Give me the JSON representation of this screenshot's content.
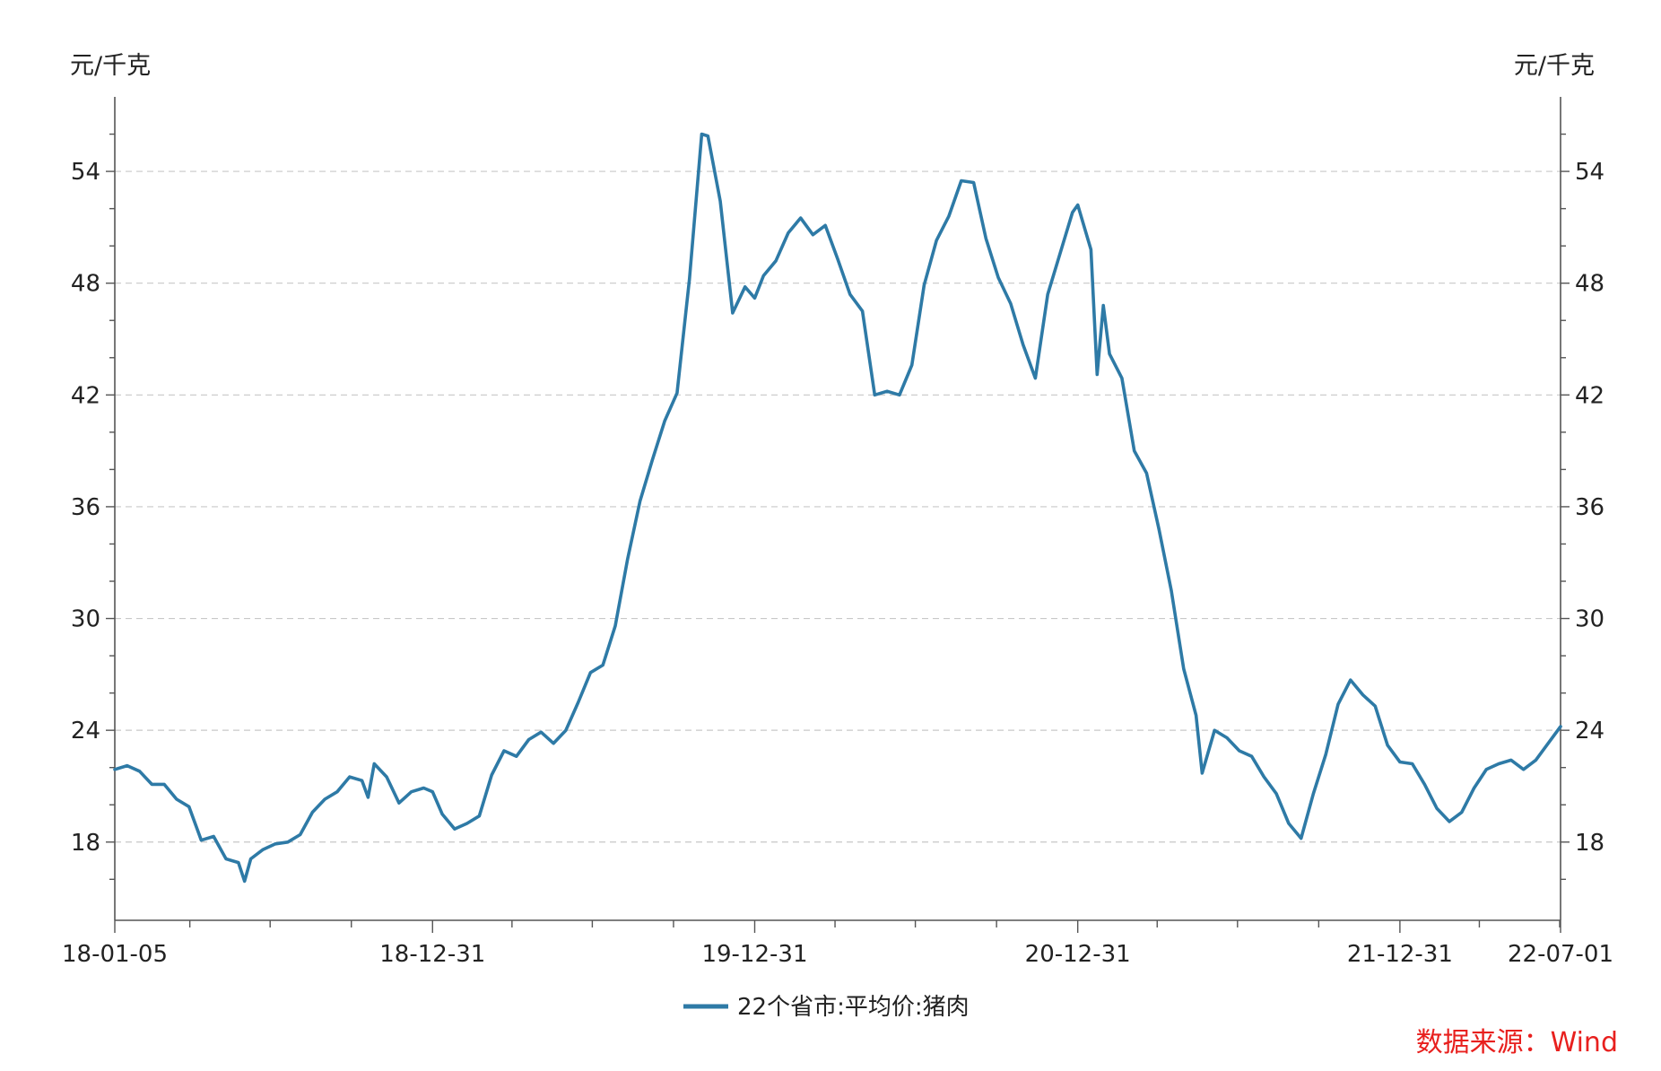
{
  "chart_data": {
    "type": "line",
    "left_unit": "元/千克",
    "right_unit": "元/千克",
    "x_tick_labels": [
      "18-01-05",
      "18-12-31",
      "19-12-31",
      "20-12-31",
      "21-12-31",
      "22-07-01"
    ],
    "x_range": [
      "2018-01-05",
      "2022-07-01"
    ],
    "ylim": [
      13.8,
      58
    ],
    "y_ticks": [
      18,
      24,
      30,
      36,
      42,
      48,
      54
    ],
    "grid": true,
    "legend_position": "bottom-center",
    "series": [
      {
        "name": "22个省市:平均价:猪肉",
        "color": "#2e7aa6",
        "points": [
          [
            "2018-01-05",
            21.9
          ],
          [
            "2018-01-19",
            22.1
          ],
          [
            "2018-02-02",
            21.8
          ],
          [
            "2018-02-16",
            21.1
          ],
          [
            "2018-03-02",
            21.1
          ],
          [
            "2018-03-16",
            20.3
          ],
          [
            "2018-03-30",
            19.9
          ],
          [
            "2018-04-13",
            18.1
          ],
          [
            "2018-04-27",
            18.3
          ],
          [
            "2018-05-11",
            17.1
          ],
          [
            "2018-05-25",
            16.9
          ],
          [
            "2018-06-01",
            15.9
          ],
          [
            "2018-06-08",
            17.1
          ],
          [
            "2018-06-22",
            17.6
          ],
          [
            "2018-07-06",
            17.9
          ],
          [
            "2018-07-20",
            18.0
          ],
          [
            "2018-08-03",
            18.4
          ],
          [
            "2018-08-17",
            19.6
          ],
          [
            "2018-08-31",
            20.3
          ],
          [
            "2018-09-14",
            20.7
          ],
          [
            "2018-09-28",
            21.5
          ],
          [
            "2018-10-12",
            21.3
          ],
          [
            "2018-10-19",
            20.4
          ],
          [
            "2018-10-26",
            22.2
          ],
          [
            "2018-11-09",
            21.5
          ],
          [
            "2018-11-23",
            20.1
          ],
          [
            "2018-12-07",
            20.7
          ],
          [
            "2018-12-21",
            20.9
          ],
          [
            "2018-12-31",
            20.7
          ],
          [
            "2019-01-11",
            19.5
          ],
          [
            "2019-01-25",
            18.7
          ],
          [
            "2019-02-08",
            19.0
          ],
          [
            "2019-02-22",
            19.4
          ],
          [
            "2019-03-08",
            21.6
          ],
          [
            "2019-03-22",
            22.9
          ],
          [
            "2019-04-05",
            22.6
          ],
          [
            "2019-04-19",
            23.5
          ],
          [
            "2019-05-03",
            23.9
          ],
          [
            "2019-05-17",
            23.3
          ],
          [
            "2019-05-31",
            24.0
          ],
          [
            "2019-06-14",
            25.5
          ],
          [
            "2019-06-28",
            27.1
          ],
          [
            "2019-07-12",
            27.5
          ],
          [
            "2019-07-26",
            29.6
          ],
          [
            "2019-08-09",
            33.2
          ],
          [
            "2019-08-23",
            36.3
          ],
          [
            "2019-09-06",
            38.5
          ],
          [
            "2019-09-20",
            40.6
          ],
          [
            "2019-10-04",
            42.1
          ],
          [
            "2019-10-18",
            48.2
          ],
          [
            "2019-11-01",
            56.0
          ],
          [
            "2019-11-08",
            55.9
          ],
          [
            "2019-11-22",
            52.4
          ],
          [
            "2019-12-06",
            46.4
          ],
          [
            "2019-12-20",
            47.8
          ],
          [
            "2019-12-31",
            47.2
          ],
          [
            "2020-01-10",
            48.4
          ],
          [
            "2020-01-24",
            49.2
          ],
          [
            "2020-02-07",
            50.7
          ],
          [
            "2020-02-21",
            51.5
          ],
          [
            "2020-03-06",
            50.6
          ],
          [
            "2020-03-20",
            51.1
          ],
          [
            "2020-04-03",
            49.3
          ],
          [
            "2020-04-17",
            47.4
          ],
          [
            "2020-05-01",
            46.5
          ],
          [
            "2020-05-15",
            42.0
          ],
          [
            "2020-05-29",
            42.2
          ],
          [
            "2020-06-12",
            42.0
          ],
          [
            "2020-06-26",
            43.6
          ],
          [
            "2020-07-10",
            47.9
          ],
          [
            "2020-07-24",
            50.3
          ],
          [
            "2020-08-07",
            51.6
          ],
          [
            "2020-08-21",
            53.5
          ],
          [
            "2020-09-04",
            53.4
          ],
          [
            "2020-09-18",
            50.4
          ],
          [
            "2020-10-02",
            48.3
          ],
          [
            "2020-10-16",
            46.9
          ],
          [
            "2020-10-30",
            44.7
          ],
          [
            "2020-11-13",
            42.9
          ],
          [
            "2020-11-27",
            47.4
          ],
          [
            "2020-12-11",
            49.6
          ],
          [
            "2020-12-25",
            51.8
          ],
          [
            "2020-12-31",
            52.2
          ],
          [
            "2021-01-15",
            49.8
          ],
          [
            "2021-01-22",
            43.1
          ],
          [
            "2021-01-29",
            46.8
          ],
          [
            "2021-02-05",
            44.2
          ],
          [
            "2021-02-19",
            42.9
          ],
          [
            "2021-03-05",
            39.0
          ],
          [
            "2021-03-19",
            37.8
          ],
          [
            "2021-04-02",
            34.8
          ],
          [
            "2021-04-16",
            31.5
          ],
          [
            "2021-04-30",
            27.3
          ],
          [
            "2021-05-14",
            24.8
          ],
          [
            "2021-05-21",
            21.7
          ],
          [
            "2021-06-04",
            24.0
          ],
          [
            "2021-06-18",
            23.6
          ],
          [
            "2021-07-02",
            22.9
          ],
          [
            "2021-07-16",
            22.6
          ],
          [
            "2021-07-30",
            21.5
          ],
          [
            "2021-08-13",
            20.6
          ],
          [
            "2021-08-27",
            19.0
          ],
          [
            "2021-09-10",
            18.2
          ],
          [
            "2021-09-24",
            20.6
          ],
          [
            "2021-10-08",
            22.7
          ],
          [
            "2021-10-22",
            25.4
          ],
          [
            "2021-11-05",
            26.7
          ],
          [
            "2021-11-19",
            25.9
          ],
          [
            "2021-12-03",
            25.3
          ],
          [
            "2021-12-17",
            23.2
          ],
          [
            "2021-12-31",
            22.3
          ],
          [
            "2022-01-14",
            22.2
          ],
          [
            "2022-01-28",
            21.1
          ],
          [
            "2022-02-11",
            19.8
          ],
          [
            "2022-02-25",
            19.1
          ],
          [
            "2022-03-11",
            19.6
          ],
          [
            "2022-03-25",
            20.9
          ],
          [
            "2022-04-08",
            21.9
          ],
          [
            "2022-04-22",
            22.2
          ],
          [
            "2022-05-06",
            22.4
          ],
          [
            "2022-05-20",
            21.9
          ],
          [
            "2022-06-03",
            22.4
          ],
          [
            "2022-06-17",
            23.3
          ],
          [
            "2022-07-01",
            24.2
          ]
        ]
      }
    ]
  },
  "source": "数据来源：Wind"
}
